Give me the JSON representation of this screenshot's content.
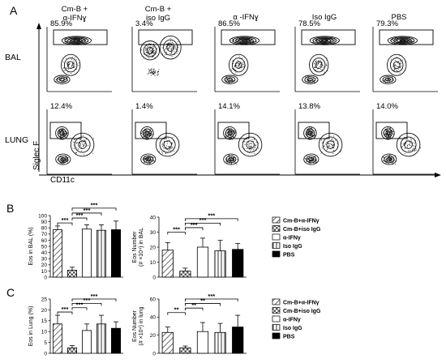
{
  "panel_letters": [
    "A",
    "B",
    "C"
  ],
  "flow": {
    "columns": [
      "Cm-B +\nα-IFNɣ",
      "Cm-B +\niso IgG",
      "α -IFNɣ",
      "Iso IgG",
      "PBS"
    ],
    "rows": [
      "BAL",
      "LUNG"
    ],
    "bal_percents": [
      "85.9%",
      "3.4%",
      "86.5%",
      "78.5%",
      "79.3%"
    ],
    "lung_percents": [
      "12.4%",
      "1.4%",
      "14.1%",
      "13.8%",
      "14.0%"
    ],
    "y_axis": "Siglec F",
    "x_axis": "CD11c"
  },
  "legend": [
    "Cm-B+α-IFNγ",
    "Cm-B+iso IgG",
    "α-IFNγ",
    "Iso IgG",
    "PBS"
  ],
  "chart_data": [
    {
      "type": "bar",
      "id": "B-left",
      "categories": [
        "Cm-B+α-IFNγ",
        "Cm-B+iso IgG",
        "α-IFNγ",
        "Iso IgG",
        "PBS"
      ],
      "values": [
        77,
        11,
        78,
        76,
        77
      ],
      "errors": [
        6,
        5,
        7,
        9,
        14
      ],
      "ylabel": "Eos in BAL (%)",
      "ylim": [
        0,
        100
      ],
      "yticks": [
        "0",
        "10",
        "20",
        "30",
        "40",
        "50",
        "60",
        "70",
        "80",
        "90",
        "100"
      ],
      "sig": [
        {
          "from": 0,
          "to": 1,
          "label": "***",
          "level": 88
        },
        {
          "from": 1,
          "to": 2,
          "label": "***",
          "level": 96
        },
        {
          "from": 1,
          "to": 3,
          "label": "***",
          "level": 104
        },
        {
          "from": 1,
          "to": 4,
          "label": "***",
          "level": 112
        }
      ]
    },
    {
      "type": "bar",
      "id": "B-right",
      "categories": [
        "Cm-B+α-IFNγ",
        "Cm-B+iso IgG",
        "α-IFNγ",
        "Iso IgG",
        "PBS"
      ],
      "values": [
        18,
        4,
        20,
        17.5,
        18.5
      ],
      "errors": [
        5,
        2,
        6,
        7,
        4
      ],
      "ylabel": "Eos Number\n(# ×10⁴) in BAL",
      "ylim": [
        0,
        40
      ],
      "yticks": [
        "0",
        "10",
        "20",
        "30",
        "40"
      ],
      "sig": [
        {
          "from": 0,
          "to": 1,
          "label": "***",
          "level": 30
        },
        {
          "from": 1,
          "to": 2,
          "label": "***",
          "level": 33
        },
        {
          "from": 1,
          "to": 3,
          "label": "***",
          "level": 36
        },
        {
          "from": 1,
          "to": 4,
          "label": "***",
          "level": 39
        }
      ]
    },
    {
      "type": "bar",
      "id": "C-left",
      "categories": [
        "Cm-B+α-IFNγ",
        "Cm-B+iso IgG",
        "α-IFNγ",
        "Iso IgG",
        "PBS"
      ],
      "values": [
        13.5,
        2.5,
        10.5,
        13.5,
        11.5
      ],
      "errors": [
        4,
        1,
        3,
        4,
        3
      ],
      "ylabel": "Eos in Lung (%)",
      "ylim": [
        0,
        25
      ],
      "yticks": [
        "0",
        "5",
        "10",
        "15",
        "20",
        "25"
      ],
      "sig": [
        {
          "from": 0,
          "to": 1,
          "label": "***",
          "level": 19
        },
        {
          "from": 1,
          "to": 2,
          "label": "***",
          "level": 21
        },
        {
          "from": 1,
          "to": 3,
          "label": "***",
          "level": 23
        },
        {
          "from": 1,
          "to": 4,
          "label": "***",
          "level": 25
        }
      ]
    },
    {
      "type": "bar",
      "id": "C-right",
      "categories": [
        "Cm-B+α-IFNγ",
        "Cm-B+iso IgG",
        "α-IFNγ",
        "Iso IgG",
        "PBS"
      ],
      "values": [
        23,
        6,
        24,
        23,
        29
      ],
      "errors": [
        6,
        2,
        10,
        10,
        13
      ],
      "ylabel": "Eos Number\n(# ×10⁴) in lung",
      "ylim": [
        0,
        60
      ],
      "yticks": [
        "0",
        "20",
        "40",
        "60"
      ],
      "sig": [
        {
          "from": 0,
          "to": 1,
          "label": "**",
          "level": 45
        },
        {
          "from": 1,
          "to": 2,
          "label": "**",
          "level": 50
        },
        {
          "from": 1,
          "to": 3,
          "label": "**",
          "level": 55
        },
        {
          "from": 1,
          "to": 4,
          "label": "***",
          "level": 60
        }
      ]
    }
  ]
}
